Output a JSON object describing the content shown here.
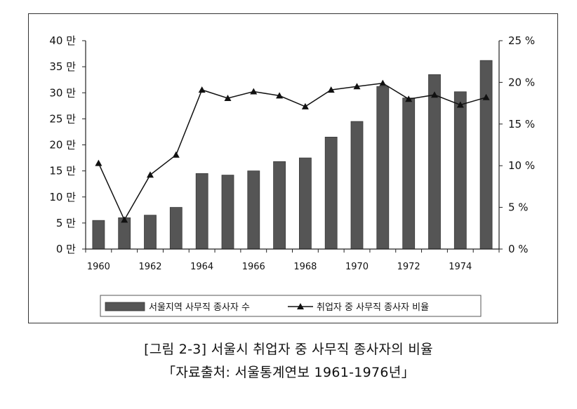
{
  "chart_data": {
    "type": "bar+line",
    "title": "",
    "categories": [
      1960,
      1961,
      1962,
      1963,
      1964,
      1965,
      1966,
      1967,
      1968,
      1969,
      1970,
      1971,
      1972,
      1973,
      1974,
      1975
    ],
    "x_tick_labels": [
      "1960",
      "1962",
      "1964",
      "1966",
      "1968",
      "1970",
      "1972",
      "1974"
    ],
    "series": [
      {
        "name": "서울지역 사무직 종사자 수",
        "type": "bar",
        "axis": "left",
        "color": "#555555",
        "values": [
          5.5,
          6.0,
          6.5,
          8.0,
          14.5,
          14.2,
          15.0,
          16.8,
          17.5,
          21.5,
          24.5,
          31.2,
          29.0,
          33.5,
          30.2,
          36.2
        ]
      },
      {
        "name": "취업자 중 사무직 종사자 비율",
        "type": "line",
        "axis": "right",
        "color": "#111111",
        "marker": "triangle",
        "values": [
          10.3,
          3.5,
          8.9,
          11.3,
          19.1,
          18.1,
          18.9,
          18.4,
          17.1,
          19.1,
          19.5,
          19.9,
          18.0,
          18.5,
          17.3,
          18.2
        ]
      }
    ],
    "y_left": {
      "min": 0,
      "max": 40,
      "unit": "만",
      "tick_labels": [
        "0 만",
        "5 만",
        "10 만",
        "15 만",
        "20 만",
        "25 만",
        "30 만",
        "35 만",
        "40 만"
      ]
    },
    "y_right": {
      "min": 0,
      "max": 25,
      "unit": "%",
      "tick_labels": [
        "0 %",
        "5 %",
        "10 %",
        "15 %",
        "20 %",
        "25 %"
      ]
    },
    "legend_position": "bottom"
  },
  "caption": {
    "line1": "[그림 2-3] 서울시 취업자 중 사무직 종사자의 비율",
    "line2": "「자료출처: 서울통계연보 1961-1976년」"
  },
  "colors": {
    "bar": "#555555",
    "line": "#111111",
    "frame": "#333333"
  }
}
